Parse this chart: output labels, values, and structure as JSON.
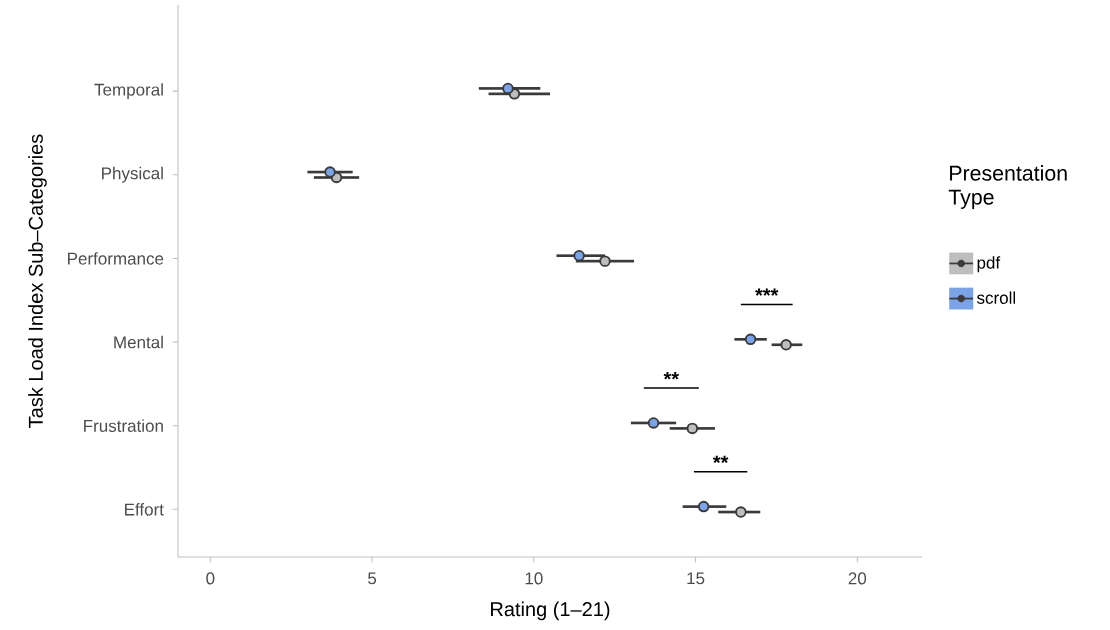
{
  "chart_data": {
    "type": "scatter",
    "orientation": "horizontal",
    "xlabel": "Rating (1–21)",
    "ylabel": "Task Load Index Sub–Categories",
    "legend_title": "Presentation Type",
    "categories": [
      "Temporal",
      "Physical",
      "Performance",
      "Mental",
      "Frustration",
      "Effort"
    ],
    "series": [
      {
        "name": "pdf",
        "color": "#bebebe",
        "values": [
          9.4,
          3.9,
          12.2,
          17.8,
          14.9,
          16.4
        ],
        "errors": [
          [
            8.6,
            10.5
          ],
          [
            3.2,
            4.6
          ],
          [
            11.3,
            13.1
          ],
          [
            17.35,
            18.3
          ],
          [
            14.2,
            15.6
          ],
          [
            15.7,
            17.0
          ]
        ]
      },
      {
        "name": "scroll",
        "color": "#7ba3e8",
        "values": [
          9.2,
          3.7,
          11.4,
          16.7,
          13.7,
          15.25
        ],
        "errors": [
          [
            8.3,
            10.2
          ],
          [
            3.0,
            4.4
          ],
          [
            10.7,
            12.2
          ],
          [
            16.2,
            17.2
          ],
          [
            13.0,
            14.4
          ],
          [
            14.6,
            15.95
          ]
        ]
      }
    ],
    "xlim": [
      -1,
      22
    ],
    "xticks": [
      0,
      5,
      10,
      15,
      20
    ],
    "grid": false,
    "legend": "right",
    "marker": "circle",
    "annotations": [
      "***",
      "**",
      "**"
    ]
  }
}
